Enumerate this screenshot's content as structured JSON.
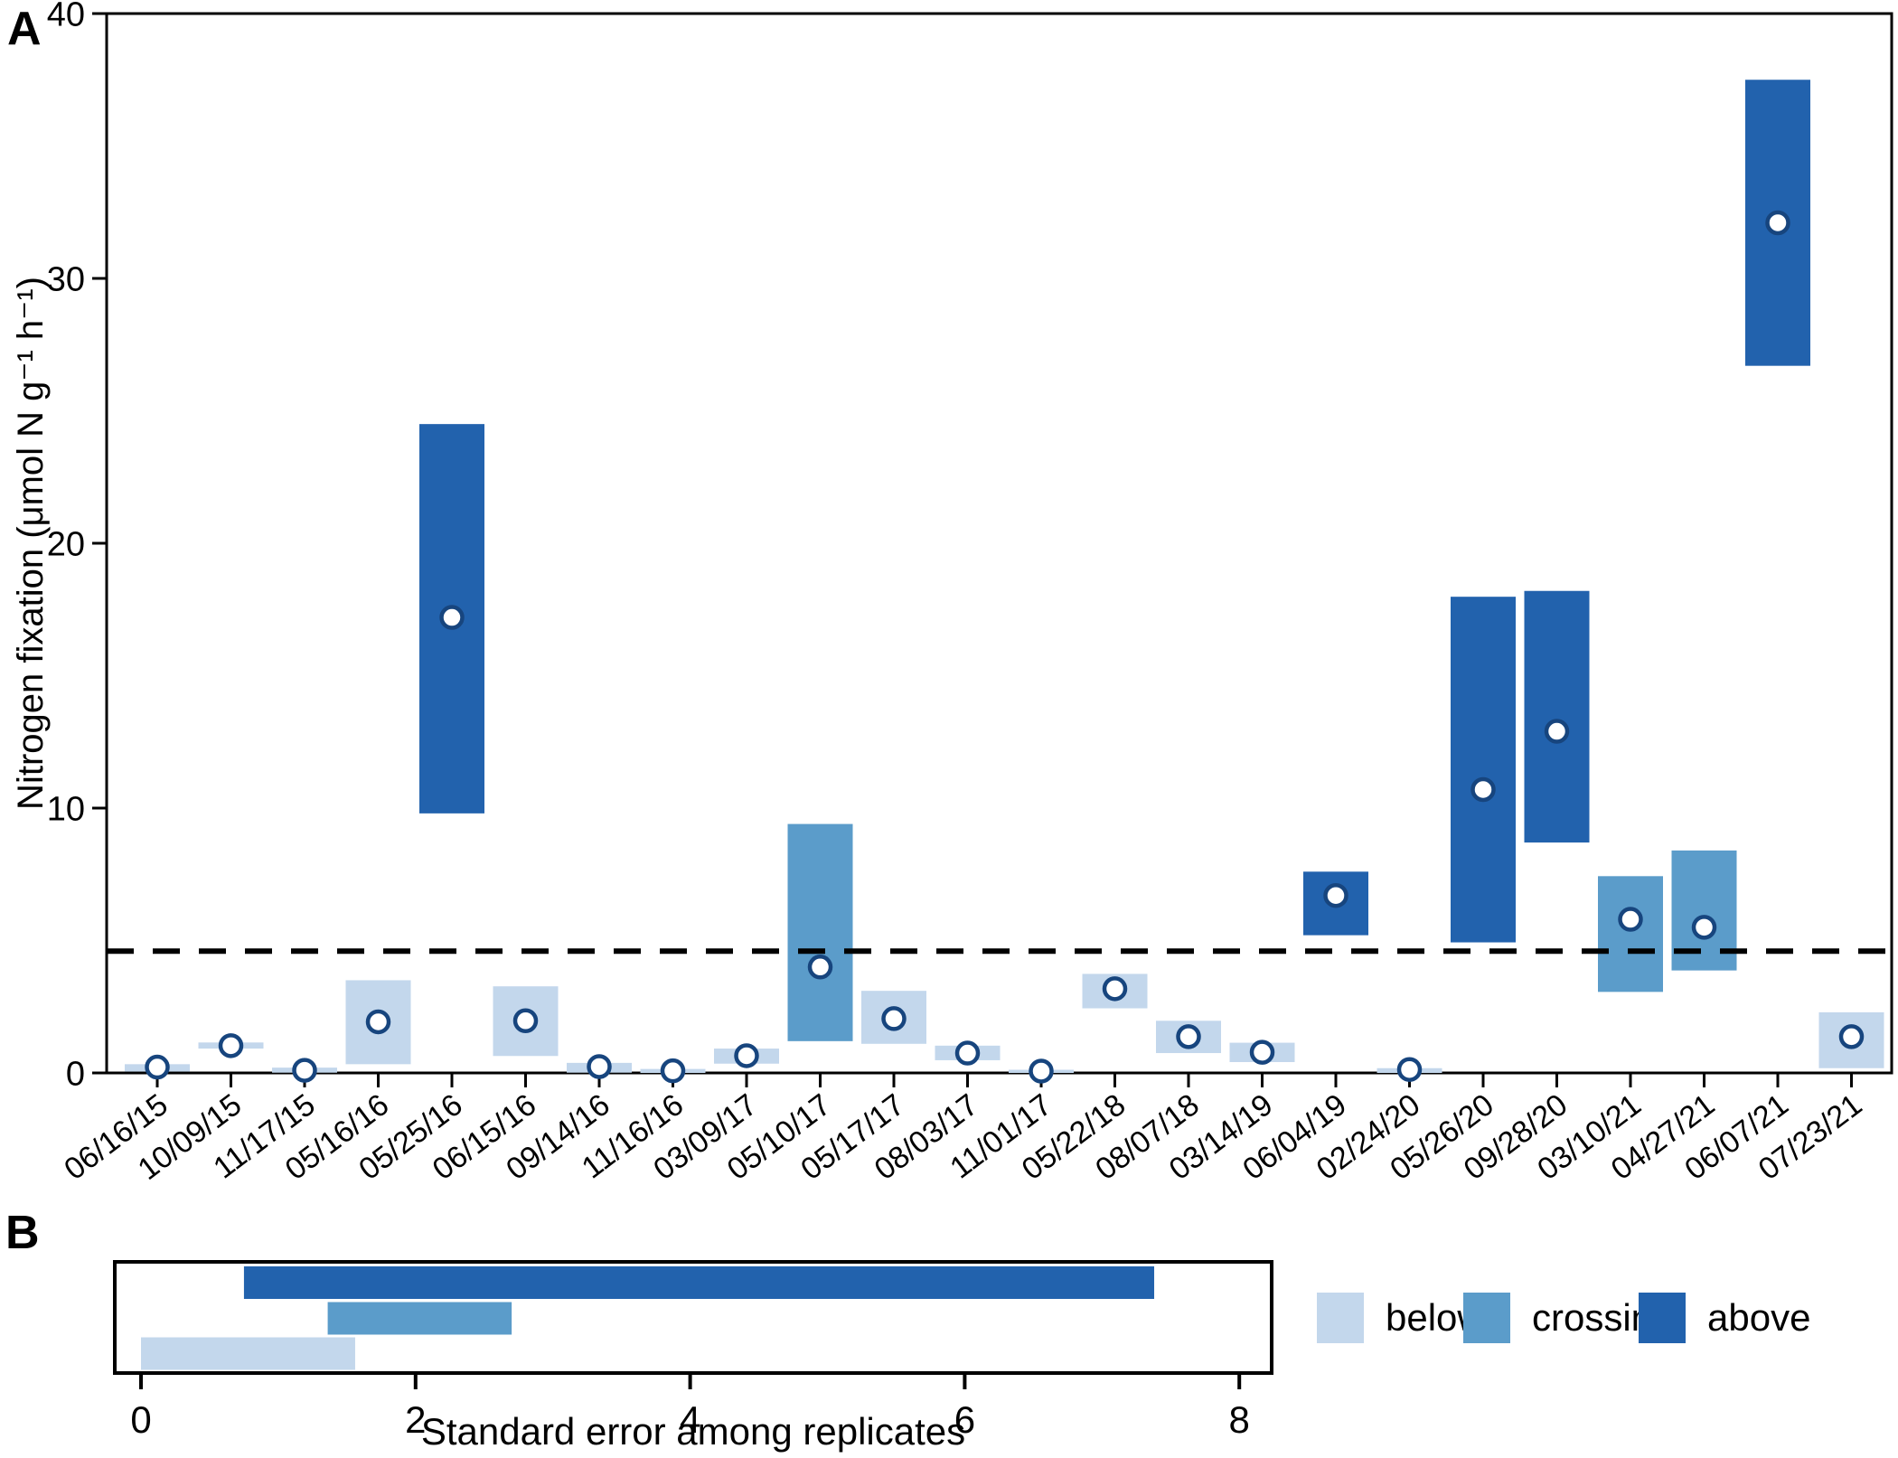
{
  "figure": {
    "panel_a_label": "A",
    "panel_b_label": "B"
  },
  "colors": {
    "below": "#c3d7ec",
    "crossing": "#5b9cca",
    "above": "#2262ad",
    "marker_fill": "#ffffff",
    "marker_ring": "#17457e",
    "axis": "#000000"
  },
  "legend": {
    "position": "bottom-right",
    "items": [
      {
        "label": "below",
        "class": "below"
      },
      {
        "label": "crossing",
        "class": "crossing"
      },
      {
        "label": "above",
        "class": "above"
      }
    ]
  },
  "chart_data": [
    {
      "panel": "A",
      "type": "bar",
      "subtype": "range-bars-with-mean-points",
      "title": "",
      "xlabel": "",
      "ylabel": "Nitrogen fixation (μmol N g⁻¹ h⁻¹)",
      "ylim": [
        0,
        40
      ],
      "yticks": [
        0,
        10,
        20,
        30,
        40
      ],
      "grid": false,
      "dashed_threshold_line_y": 4.6,
      "categories": [
        "06/16/15",
        "10/09/15",
        "11/17/15",
        "05/16/16",
        "05/25/16",
        "06/15/16",
        "09/14/16",
        "11/16/16",
        "03/09/17",
        "05/10/17",
        "05/17/17",
        "08/03/17",
        "11/01/17",
        "05/22/18",
        "08/07/18",
        "03/14/19",
        "06/04/19",
        "02/24/20",
        "05/26/20",
        "09/28/20",
        "03/10/21",
        "04/27/21",
        "06/07/21",
        "07/23/21"
      ],
      "series": [
        {
          "name": "range_low",
          "values": [
            0.05,
            0.92,
            0.01,
            0.33,
            9.8,
            0.64,
            0.01,
            0.0,
            0.35,
            1.2,
            1.1,
            0.48,
            0.0,
            2.44,
            0.75,
            0.41,
            5.2,
            0.0,
            4.93,
            8.7,
            3.06,
            3.87,
            26.7,
            0.18
          ]
        },
        {
          "name": "range_high",
          "values": [
            0.33,
            1.15,
            0.2,
            3.5,
            24.5,
            3.27,
            0.38,
            0.15,
            0.92,
            9.4,
            3.1,
            1.03,
            0.12,
            3.74,
            1.97,
            1.14,
            7.6,
            0.18,
            17.98,
            18.2,
            7.43,
            8.4,
            37.5,
            2.29
          ]
        },
        {
          "name": "mean",
          "values": [
            0.22,
            1.03,
            0.1,
            1.93,
            17.2,
            1.97,
            0.24,
            0.08,
            0.65,
            4.0,
            2.05,
            0.75,
            0.07,
            3.18,
            1.37,
            0.78,
            6.7,
            0.13,
            10.7,
            12.9,
            5.8,
            5.5,
            32.1,
            1.37
          ]
        },
        {
          "name": "class",
          "values": [
            "below",
            "below",
            "below",
            "below",
            "above",
            "below",
            "below",
            "below",
            "below",
            "crossing",
            "below",
            "below",
            "below",
            "below",
            "below",
            "below",
            "above",
            "below",
            "above",
            "above",
            "crossing",
            "crossing",
            "above",
            "below"
          ]
        }
      ]
    },
    {
      "panel": "B",
      "type": "bar",
      "orientation": "horizontal",
      "subtype": "range-bars",
      "title": "",
      "xlabel": "Standard error among replicates",
      "ylabel": "",
      "xlim": [
        0,
        8.8
      ],
      "xticks": [
        0,
        2,
        4,
        6,
        8
      ],
      "grid": false,
      "categories": [
        "above",
        "crossing",
        "below"
      ],
      "series": [
        {
          "name": "standard_error_range",
          "values": [
            [
              0.75,
              7.38
            ],
            [
              1.36,
              2.7
            ],
            [
              0.0,
              1.56
            ]
          ]
        }
      ]
    }
  ]
}
